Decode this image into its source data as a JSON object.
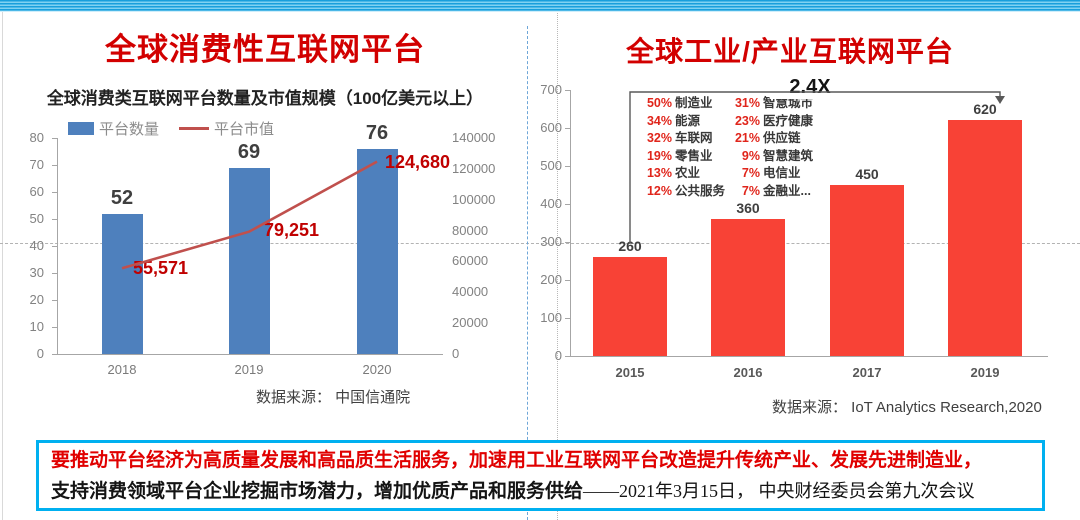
{
  "slide": {
    "accent_red": "#d20000",
    "strip_blue": "#29abe2",
    "quote_border_blue": "#00b0f0"
  },
  "left_panel": {
    "title": "全球消费性互联网平台"
  },
  "right_panel": {
    "title": "全球工业/产业互联网平台",
    "industry_stats": {
      "rows": [
        [
          {
            "pct": "50%",
            "label": "制造业"
          },
          {
            "pct": "31%",
            "label": "智慧城市"
          }
        ],
        [
          {
            "pct": "34%",
            "label": "能源"
          },
          {
            "pct": "23%",
            "label": "医疗健康"
          }
        ],
        [
          {
            "pct": "32%",
            "label": "车联网"
          },
          {
            "pct": "21%",
            "label": "供应链"
          }
        ],
        [
          {
            "pct": "19%",
            "label": "零售业"
          },
          {
            "pct": "9%",
            "label": "智慧建筑"
          }
        ],
        [
          {
            "pct": "13%",
            "label": "农业"
          },
          {
            "pct": "7%",
            "label": "电信业"
          }
        ],
        [
          {
            "pct": "12%",
            "label": "公共服务"
          },
          {
            "pct": "7%",
            "label": "金融业..."
          }
        ]
      ]
    }
  },
  "chart_data": [
    {
      "id": "consumer-platforms",
      "type": "bar",
      "subtype": "bar+line-combo",
      "title": "全球消费类互联网平台数量及市值规模（100亿美元以上）",
      "categories": [
        "2018",
        "2019",
        "2020"
      ],
      "series": [
        {
          "name": "平台数量",
          "type": "bar",
          "axis": "left",
          "color": "#4e80bd",
          "values": [
            52,
            69,
            76
          ]
        },
        {
          "name": "平台市值",
          "type": "line",
          "axis": "right",
          "color": "#c0504d",
          "label_color": "#c00000",
          "values": [
            55571,
            79251,
            124680
          ],
          "value_labels": [
            "55,571",
            "79,251",
            "124,680"
          ]
        }
      ],
      "left_axis": {
        "min": 0,
        "max": 80,
        "step": 10
      },
      "right_axis": {
        "min": 0,
        "max": 140000,
        "step": 20000
      },
      "legend_position": "top",
      "grid": false,
      "source": "数据来源： 中国信通院"
    },
    {
      "id": "industrial-platforms",
      "type": "bar",
      "categories": [
        "2015",
        "2016",
        "2017",
        "2019"
      ],
      "values": [
        260,
        360,
        450,
        620
      ],
      "bar_color": "#f84236",
      "ylim": [
        0,
        700
      ],
      "ytick_step": 100,
      "grid": false,
      "annotation": "2.4X",
      "annotation_span": [
        "2015",
        "2019"
      ],
      "source": "数据来源： IoT Analytics Research,2020"
    }
  ],
  "quote": {
    "line1": "要推动平台经济为高质量发展和高品质生活服务，加速用工业互联网平台改造提升传统产业、发展先进制造业，",
    "line2_bold": "支持消费领域平台企业挖掘市场潜力，增加优质产品和服务供给",
    "line2_cite": "——2021年3月15日， 中央财经委员会第九次会议"
  }
}
